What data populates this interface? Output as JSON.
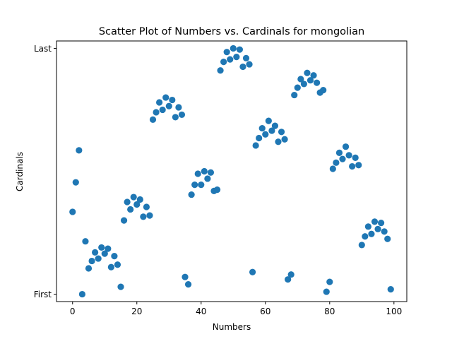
{
  "chart_data": {
    "type": "scatter",
    "title": "Scatter Plot of Numbers vs. Cardinals for mongolian",
    "xlabel": "Numbers",
    "ylabel": "Cardinals",
    "xlim": [
      -5,
      104
    ],
    "ylim": [
      -0.03,
      1.03
    ],
    "xticks": [
      0,
      20,
      40,
      60,
      80,
      100
    ],
    "xtick_labels": [
      "0",
      "20",
      "40",
      "60",
      "80",
      "100"
    ],
    "yticks": [
      0,
      1
    ],
    "ytick_labels": [
      "First",
      "Last"
    ],
    "grid": false,
    "marker_color": "#1f77b4",
    "series": [
      {
        "x": [
          0,
          1,
          2,
          3,
          4,
          5,
          6,
          7,
          8,
          9,
          10,
          11,
          12,
          13,
          14,
          15,
          16,
          17,
          18,
          19,
          20,
          21,
          22,
          23,
          24,
          25,
          26,
          27,
          28,
          29,
          30,
          31,
          32,
          33,
          34,
          35,
          36,
          37,
          38,
          39,
          40,
          41,
          42,
          43,
          44,
          45,
          46,
          47,
          48,
          49,
          50,
          51,
          52,
          53,
          54,
          55,
          56,
          57,
          58,
          59,
          60,
          61,
          62,
          63,
          64,
          65,
          66,
          67,
          68,
          69,
          70,
          71,
          72,
          73,
          74,
          75,
          76,
          77,
          78,
          79,
          80,
          81,
          82,
          83,
          84,
          85,
          86,
          87,
          88,
          89,
          90,
          91,
          92,
          93,
          94,
          95,
          96,
          97,
          98,
          99
        ],
        "y": [
          0.335,
          0.455,
          0.585,
          0.0,
          0.215,
          0.105,
          0.135,
          0.17,
          0.145,
          0.19,
          0.165,
          0.185,
          0.11,
          0.155,
          0.12,
          0.03,
          0.3,
          0.375,
          0.345,
          0.395,
          0.365,
          0.385,
          0.315,
          0.355,
          0.32,
          0.71,
          0.74,
          0.78,
          0.75,
          0.8,
          0.765,
          0.79,
          0.72,
          0.76,
          0.73,
          0.07,
          0.04,
          0.405,
          0.445,
          0.49,
          0.445,
          0.5,
          0.47,
          0.495,
          0.42,
          0.425,
          0.91,
          0.945,
          0.985,
          0.955,
          1.0,
          0.965,
          0.995,
          0.925,
          0.96,
          0.935,
          0.09,
          0.605,
          0.635,
          0.675,
          0.65,
          0.705,
          0.665,
          0.685,
          0.62,
          0.66,
          0.63,
          0.06,
          0.08,
          0.81,
          0.84,
          0.875,
          0.855,
          0.9,
          0.87,
          0.89,
          0.86,
          0.82,
          0.83,
          0.01,
          0.05,
          0.51,
          0.535,
          0.575,
          0.55,
          0.6,
          0.565,
          0.52,
          0.555,
          0.525,
          0.2,
          0.235,
          0.275,
          0.245,
          0.295,
          0.265,
          0.29,
          0.255,
          0.225,
          0.02
        ]
      }
    ]
  }
}
